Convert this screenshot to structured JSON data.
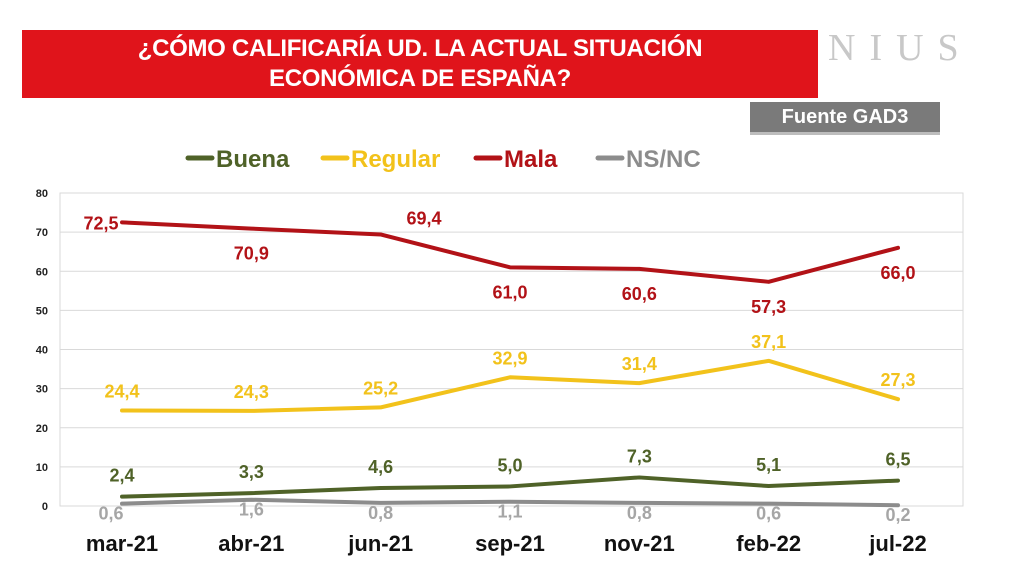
{
  "header": {
    "title_line1": "¿CÓMO CALIFICARÍA UD. LA ACTUAL SITUACIÓN",
    "title_line2": "ECONÓMICA DE ESPAÑA?",
    "brand": "NIUS",
    "source": "Fuente GAD3"
  },
  "chart_data": {
    "type": "line",
    "categories": [
      "mar-21",
      "abr-21",
      "jun-21",
      "sep-21",
      "nov-21",
      "feb-22",
      "jul-22"
    ],
    "ylim": [
      0,
      80
    ],
    "yticks": [
      0,
      10,
      20,
      30,
      40,
      50,
      60,
      70,
      80
    ],
    "grid": true,
    "legend_position": "top",
    "series": [
      {
        "name": "Buena",
        "color": "#4f6228",
        "values": [
          2.4,
          3.3,
          4.6,
          5.0,
          7.3,
          5.1,
          6.5
        ],
        "labels": [
          "2,4",
          "3,3",
          "4,6",
          "5,0",
          "7,3",
          "5,1",
          "6,5"
        ]
      },
      {
        "name": "Regular",
        "color": "#f2c21b",
        "values": [
          24.4,
          24.3,
          25.2,
          32.9,
          31.4,
          37.1,
          27.3
        ],
        "labels": [
          "24,4",
          "24,3",
          "25,2",
          "32,9",
          "31,4",
          "37,1",
          "27,3"
        ]
      },
      {
        "name": "Mala",
        "color": "#b21217",
        "values": [
          72.5,
          70.9,
          69.4,
          61.0,
          60.6,
          57.3,
          66.0
        ],
        "labels": [
          "72,5",
          "70,9",
          "69,4",
          "61,0",
          "60,6",
          "57,3",
          "66,0"
        ]
      },
      {
        "name": "NS/NC",
        "color": "#8c8c8c",
        "values": [
          0.6,
          1.6,
          0.8,
          1.1,
          0.8,
          0.6,
          0.2
        ],
        "labels": [
          "0,6",
          "1,6",
          "0,8",
          "1,1",
          "0,8",
          "0,6",
          "0,2"
        ]
      }
    ]
  }
}
